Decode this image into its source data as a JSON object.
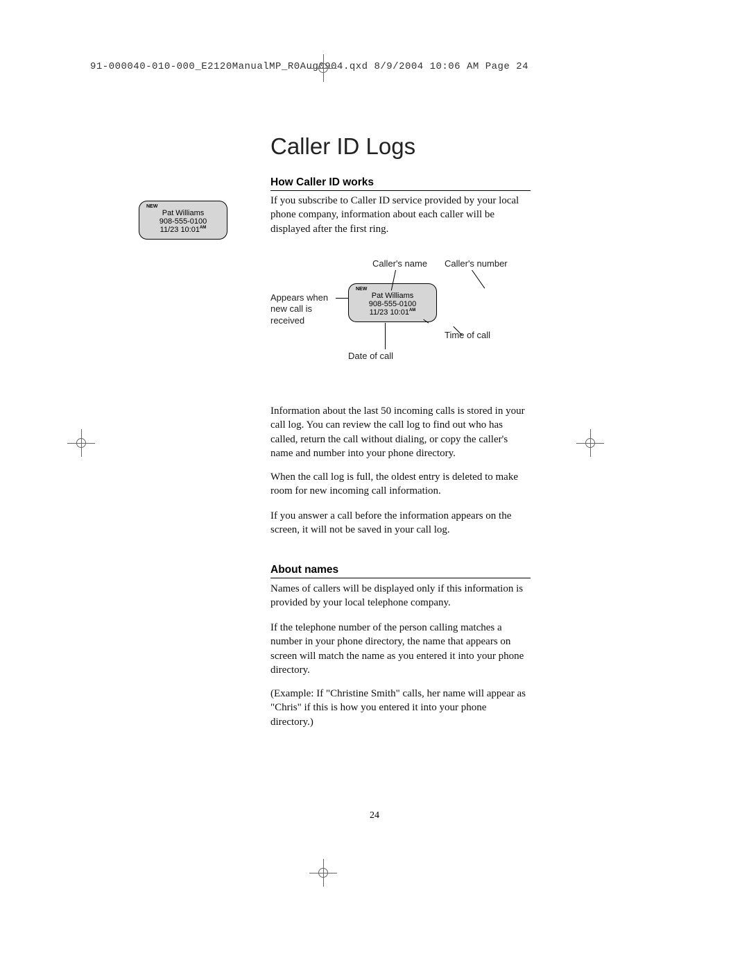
{
  "header": "91-000040-010-000_E2120ManualMP_R0Aug0904.qxd  8/9/2004  10:06 AM  Page 24",
  "title": "Caller ID Logs",
  "sections": {
    "how_works": {
      "heading": "How Caller ID works",
      "p1": "If you subscribe to Caller ID service provided by your local phone company, information about each caller will be displayed after the first ring.",
      "p2": "Information about the last 50 incoming calls is stored in your call log. You can review the call log to find out who has called, return the call without dialing, or copy the caller's name and number into your phone directory.",
      "p3": "When the call log is full, the oldest entry is deleted to make room for new incoming call information.",
      "p4": "If you answer a call before the information appears on the screen, it will not be saved in your call log."
    },
    "about_names": {
      "heading": "About names",
      "p5": "Names of callers will be displayed only if this information is provided by your local telephone company.",
      "p6": "If the telephone number of the person calling matches a number in your phone directory, the name that appears on screen will match the name as you entered it into your phone directory.",
      "p7": "(Example: If \"Christine Smith\" calls, her name will appear as \"Chris\" if this is how you entered it into your phone directory.)"
    }
  },
  "lcd": {
    "new": "NEW",
    "name": "Pat Williams",
    "number": "908-555-0100",
    "datetime": "11/23 10:01",
    "ampm": "AM",
    "bg_color": "#d6d6d6",
    "border_color": "#000000"
  },
  "diagram_labels": {
    "caller_name": "Caller's name",
    "caller_number": "Caller's number",
    "appears": "Appears when new call is received",
    "time_of_call": "Time of call",
    "date_of_call": "Date of call"
  },
  "page_number": "24"
}
